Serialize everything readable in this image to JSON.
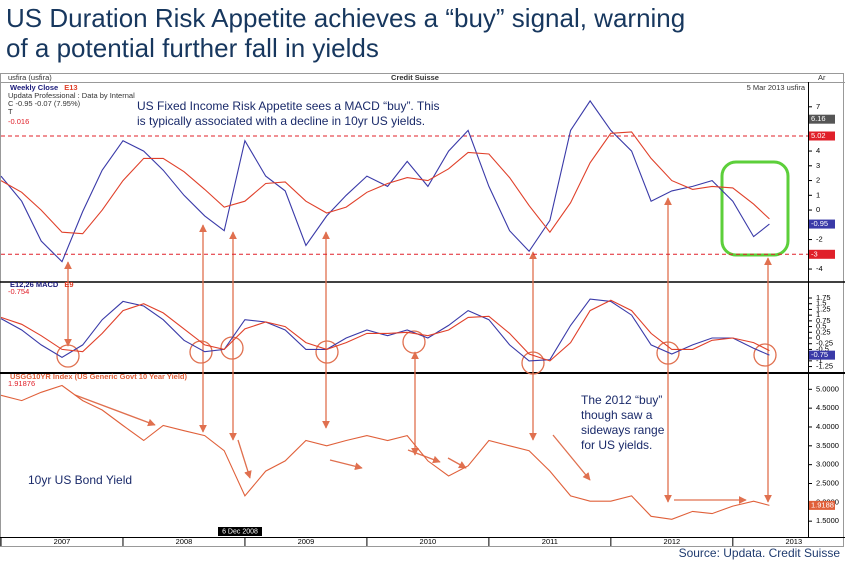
{
  "title": [
    "US Duration Risk Appetite achieves a “buy” signal, warning",
    "of a potential further fall in yields"
  ],
  "source": "Source: Updata. Credit Suisse",
  "header": {
    "left": "usfira (usfira)",
    "center": "Credit Suisse",
    "right": "5 Mar 2013  usfira",
    "corner": "Ar"
  },
  "info": [
    "Updata Professional : Data by Internal",
    "C -0.95 -0.07 (7.95%)",
    "T"
  ],
  "date_marker": "6 Dec 2008",
  "annotations": {
    "top": [
      "US Fixed Income Risk Appetite sees a MACD “buy”.  This",
      "is typically associated with a decline in 10yr US yields."
    ],
    "right": [
      "The 2012 “buy”",
      "though saw a",
      "sideways range",
      "for US yields."
    ],
    "left": "10yr US Bond Yield"
  },
  "chart_data": [
    {
      "type": "line",
      "readout": "-0.016",
      "x": [
        2007,
        2007.17,
        2007.33,
        2007.5,
        2007.67,
        2007.83,
        2008,
        2008.17,
        2008.33,
        2008.5,
        2008.67,
        2008.83,
        2009,
        2009.17,
        2009.33,
        2009.5,
        2009.67,
        2009.83,
        2010,
        2010.17,
        2010.33,
        2010.5,
        2010.67,
        2010.83,
        2011,
        2011.17,
        2011.33,
        2011.5,
        2011.67,
        2011.83,
        2012,
        2012.17,
        2012.33,
        2012.5,
        2012.67,
        2012.83,
        2013,
        2013.17,
        2013.3
      ],
      "series": [
        {
          "name": "Weekly Close",
          "color": "#3a3aa8",
          "values": [
            2.3,
            0.6,
            -2.1,
            -3.5,
            -0.1,
            2.7,
            4.7,
            4.0,
            2.7,
            1.0,
            -0.4,
            -1.4,
            4.7,
            2.3,
            1.3,
            -2.4,
            -0.4,
            1.0,
            2.3,
            1.6,
            3.3,
            1.6,
            4.0,
            5.4,
            1.6,
            -1.4,
            -2.8,
            -0.7,
            5.4,
            7.4,
            5.4,
            4.0,
            0.6,
            1.3,
            1.6,
            2.0,
            0.6,
            -1.8,
            -0.95
          ],
          "value_labels": [
            null,
            null,
            null,
            null,
            null,
            null,
            null,
            null,
            null,
            null,
            null,
            null,
            null,
            null,
            null,
            null,
            null,
            null,
            null,
            null,
            null,
            null,
            null,
            null,
            null,
            null,
            null,
            null,
            null,
            null,
            null,
            null,
            null,
            null,
            null,
            null,
            null,
            null,
            "-0.95"
          ]
        },
        {
          "name": "E13",
          "color": "#e0402a",
          "values": [
            2.0,
            1.2,
            0.0,
            -1.5,
            -1.6,
            0.0,
            2.0,
            3.5,
            3.5,
            2.6,
            1.4,
            0.2,
            0.6,
            1.8,
            1.9,
            0.6,
            -0.2,
            0.2,
            1.2,
            1.8,
            2.2,
            2.0,
            2.8,
            3.9,
            3.8,
            2.2,
            0.3,
            -1.5,
            0.5,
            3.2,
            5.2,
            5.3,
            3.5,
            2.0,
            1.4,
            1.6,
            1.5,
            0.4,
            -0.6
          ]
        }
      ],
      "hlines": [
        {
          "value": 5.02,
          "label": "5.02",
          "color": "#e0202a"
        },
        {
          "value": -3,
          "label": "-3",
          "color": "#e0202a"
        }
      ],
      "markers": [
        {
          "value": 6.16,
          "label": "6.16",
          "color": "#555555"
        }
      ],
      "xlim": [
        2007,
        2013.6
      ],
      "ylim": [
        -4.2,
        7.8
      ],
      "yticks": [
        -4,
        -3,
        -2,
        -1,
        0,
        1,
        2,
        3,
        4,
        5,
        6,
        7
      ]
    },
    {
      "type": "line",
      "readout": "-0.754",
      "x": [
        2007,
        2007.17,
        2007.33,
        2007.5,
        2007.67,
        2007.83,
        2008,
        2008.17,
        2008.33,
        2008.5,
        2008.67,
        2008.83,
        2009,
        2009.17,
        2009.33,
        2009.5,
        2009.67,
        2009.83,
        2010,
        2010.17,
        2010.33,
        2010.5,
        2010.67,
        2010.83,
        2011,
        2011.17,
        2011.33,
        2011.5,
        2011.67,
        2011.83,
        2012,
        2012.17,
        2012.33,
        2012.5,
        2012.67,
        2012.83,
        2013,
        2013.17,
        2013.3
      ],
      "series": [
        {
          "name": "E12,26 MACD",
          "color": "#3a3aa8",
          "values": [
            0.85,
            0.35,
            -0.3,
            -0.85,
            -0.3,
            0.8,
            1.6,
            1.4,
            0.8,
            -0.1,
            -0.6,
            -0.5,
            0.8,
            0.7,
            0.35,
            -0.5,
            -0.5,
            0,
            0.35,
            0.1,
            0.35,
            0,
            0.55,
            1.2,
            0.8,
            -0.3,
            -1.0,
            -0.95,
            0.55,
            1.7,
            1.6,
            1.0,
            -0.3,
            -0.7,
            -0.3,
            0,
            0,
            -0.45,
            -0.75
          ],
          "value_labels": [
            null,
            null,
            null,
            null,
            null,
            null,
            null,
            null,
            null,
            null,
            null,
            null,
            null,
            null,
            null,
            null,
            null,
            null,
            null,
            null,
            null,
            null,
            null,
            null,
            null,
            null,
            null,
            null,
            null,
            null,
            null,
            null,
            null,
            null,
            null,
            null,
            null,
            null,
            "-0.75"
          ]
        },
        {
          "name": "E9",
          "color": "#e0402a",
          "values": [
            0.9,
            0.6,
            0.1,
            -0.5,
            -0.6,
            0.2,
            1.2,
            1.5,
            1.1,
            0.4,
            -0.3,
            -0.5,
            0.4,
            0.7,
            0.5,
            -0.2,
            -0.5,
            -0.2,
            0.2,
            0.2,
            0.25,
            0.1,
            0.35,
            0.9,
            0.95,
            0.2,
            -0.7,
            -1.0,
            -0.2,
            1.2,
            1.65,
            1.2,
            0.2,
            -0.5,
            -0.5,
            -0.1,
            0.0,
            -0.2,
            -0.55
          ]
        }
      ],
      "xlim": [
        2007,
        2013.6
      ],
      "ylim": [
        -1.4,
        2.1
      ],
      "yticks": [
        -1.25,
        -1,
        -0.75,
        -0.5,
        -0.25,
        0,
        0.25,
        0.5,
        0.75,
        1,
        1.25,
        1.5,
        1.75
      ]
    },
    {
      "type": "line",
      "readout": "1.91876",
      "x": [
        2007,
        2007.17,
        2007.33,
        2007.5,
        2007.67,
        2007.83,
        2008,
        2008.17,
        2008.33,
        2008.5,
        2008.67,
        2008.83,
        2009,
        2009.17,
        2009.33,
        2009.5,
        2009.67,
        2009.83,
        2010,
        2010.17,
        2010.33,
        2010.5,
        2010.67,
        2010.83,
        2011,
        2011.17,
        2011.33,
        2011.5,
        2011.67,
        2011.83,
        2012,
        2012.17,
        2012.33,
        2012.5,
        2012.67,
        2012.83,
        2013,
        2013.17,
        2013.3
      ],
      "series": [
        {
          "name": "USGG10YR Index (US Generic Govt 10 Year Yield)",
          "color": "#e0603a",
          "values": [
            4.84,
            4.7,
            4.92,
            5.1,
            4.7,
            4.45,
            4.04,
            3.64,
            4.04,
            3.9,
            3.77,
            3.37,
            2.17,
            2.83,
            3.1,
            3.64,
            3.5,
            3.64,
            3.77,
            3.64,
            3.77,
            3.1,
            2.7,
            2.97,
            3.64,
            3.5,
            3.37,
            2.83,
            2.17,
            2.03,
            2.03,
            2.17,
            1.63,
            1.55,
            1.76,
            1.7,
            1.9,
            2.03,
            1.9188
          ],
          "value_labels": [
            null,
            null,
            null,
            null,
            null,
            null,
            null,
            null,
            null,
            null,
            null,
            null,
            null,
            null,
            null,
            null,
            null,
            null,
            null,
            null,
            null,
            null,
            null,
            null,
            null,
            null,
            null,
            null,
            null,
            null,
            null,
            null,
            null,
            null,
            null,
            null,
            null,
            null,
            "1.9188"
          ]
        }
      ],
      "xlim": [
        2007,
        2013.6
      ],
      "xticks": [
        2007,
        2008,
        2009,
        2010,
        2011,
        2012,
        2013
      ],
      "ylim": [
        1.0,
        5.3
      ],
      "yticks": [
        {
          "value": 1.5,
          "label": "1.5000"
        },
        {
          "value": 2,
          "label": "2.0000"
        },
        {
          "value": 2.5,
          "label": "2.5000"
        },
        {
          "value": 3,
          "label": "3.0000"
        },
        {
          "value": 3.5,
          "label": "3.5000"
        },
        {
          "value": 4,
          "label": "4.0000"
        },
        {
          "value": 4.5,
          "label": "4.5000"
        },
        {
          "value": 5,
          "label": "5.0000"
        }
      ]
    }
  ]
}
